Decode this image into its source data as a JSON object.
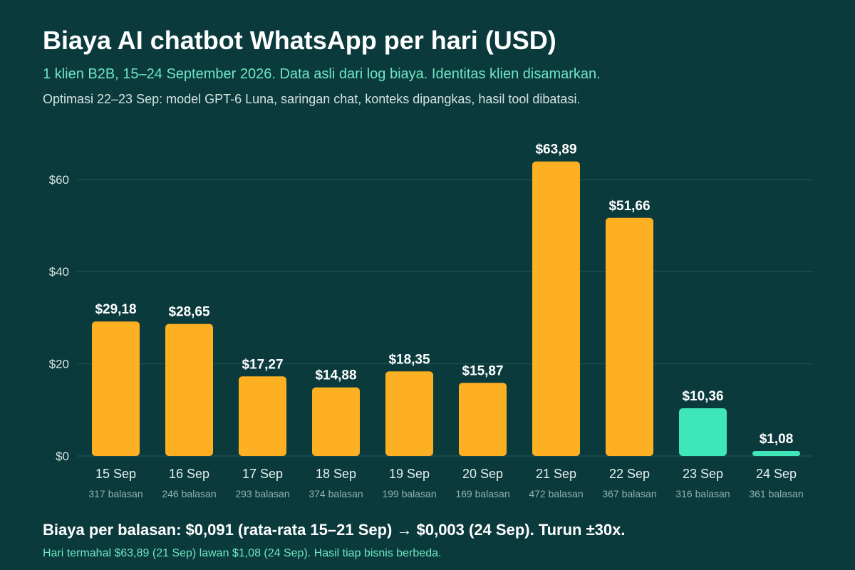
{
  "header": {
    "title": "Biaya AI chatbot WhatsApp per hari (USD)",
    "subtitle": "1 klien B2B, 15–24 September 2026. Data asli dari log biaya. Identitas klien disamarkan.",
    "note": "Optimasi 22–23 Sep: model GPT-6 Luna, saringan chat, konteks dipangkas, hasil tool dibatasi."
  },
  "footer": {
    "summary": "Biaya per balasan: $0,091 (rata-rata 15–21 Sep) → $0,003 (24 Sep). Turun ±30x.",
    "footnote": "Hari termahal $63,89 (21 Sep) lawan $1,08 (24 Sep). Hasil tiap bisnis berbeda."
  },
  "colors": {
    "background": "#0b3a3c",
    "bar_default": "#fdb022",
    "bar_optimized": "#3ee6b8",
    "grid": "#235556",
    "tick_text": "#d5e3e1",
    "category_text": "#e6efee",
    "sublabel_text": "#8fb3ae",
    "value_label": "#ffffff"
  },
  "chart_data": {
    "type": "bar",
    "categories": [
      "15 Sep",
      "16 Sep",
      "17 Sep",
      "18 Sep",
      "19 Sep",
      "20 Sep",
      "21 Sep",
      "22 Sep",
      "23 Sep",
      "24 Sep"
    ],
    "category_sublabels": [
      "317 balasan",
      "246 balasan",
      "293 balasan",
      "374 balasan",
      "199 balasan",
      "169 balasan",
      "472 balasan",
      "367 balasan",
      "316 balasan",
      "361 balasan"
    ],
    "values": [
      29.18,
      28.65,
      17.27,
      14.88,
      18.35,
      15.87,
      63.89,
      51.66,
      10.36,
      1.08
    ],
    "value_labels": [
      "$29,18",
      "$28,65",
      "$17,27",
      "$14,88",
      "$18,35",
      "$15,87",
      "$63,89",
      "$51,66",
      "$10,36",
      "$1,08"
    ],
    "highlighted_categories": [
      "23 Sep",
      "24 Sep"
    ],
    "ylim": [
      0,
      66
    ],
    "yticks": [
      0,
      20,
      40,
      60
    ],
    "ytick_labels": [
      "$0",
      "$20",
      "$40",
      "$60"
    ],
    "grid": true,
    "xlabel": "",
    "ylabel": ""
  }
}
